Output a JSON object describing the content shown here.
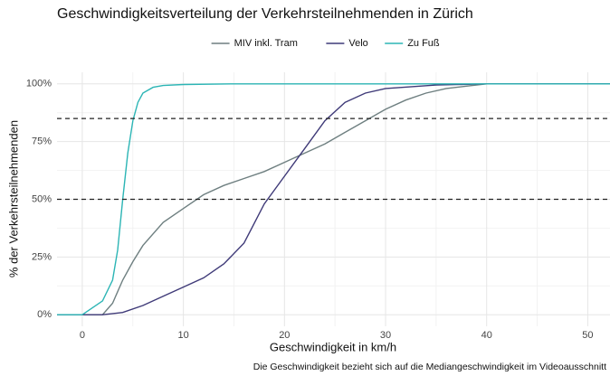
{
  "chart_data": {
    "type": "line",
    "title": "Geschwindigkeitsverteilung der Verkehrsteilnehmenden in Zürich",
    "x_label": "Geschwindigkeit in km/h",
    "y_label": "% der Verkehrsteilnehmenden",
    "caption": "Die Geschwindigkeit bezieht sich auf die Mediangeschwindigkeit im Videoausschnitt",
    "xlim": [
      -2.5,
      52.2
    ],
    "xticks": [
      0,
      10,
      20,
      30,
      40,
      50
    ],
    "xticks_minor": [
      5,
      15,
      25,
      35,
      45
    ],
    "ylim": [
      -5,
      105
    ],
    "yticks": [
      {
        "value": 0,
        "label": "0%"
      },
      {
        "value": 25,
        "label": "25%"
      },
      {
        "value": 50,
        "label": "50%"
      },
      {
        "value": 75,
        "label": "75%"
      },
      {
        "value": 100,
        "label": "100%"
      }
    ],
    "yticks_minor": [
      12.5,
      37.5,
      62.5,
      87.5
    ],
    "grid": true,
    "reference_lines": [
      50,
      85
    ],
    "legend": "top",
    "series": [
      {
        "name": "MIV inkl. Tram",
        "color": "#6e7f80",
        "x": [
          -2.5,
          2,
          3,
          4,
          5,
          6,
          8,
          10,
          12,
          14,
          16,
          18,
          20,
          22,
          24,
          26,
          28,
          30,
          32,
          34,
          36,
          38,
          40,
          52.2
        ],
        "values": [
          0,
          0,
          5,
          15,
          23,
          30,
          40,
          46,
          52,
          56,
          59,
          62,
          66,
          70,
          74,
          79,
          84,
          89,
          93,
          96,
          98,
          99,
          100,
          100
        ]
      },
      {
        "name": "Velo",
        "color": "#3f3a78",
        "x": [
          -2.5,
          2,
          4,
          6,
          8,
          10,
          12,
          14,
          16,
          18,
          20,
          22,
          24,
          26,
          28,
          30,
          35,
          40,
          52.2
        ],
        "values": [
          0,
          0,
          1,
          4,
          8,
          12,
          16,
          22,
          31,
          48,
          60,
          72,
          84,
          92,
          96,
          98,
          99.5,
          100,
          100
        ]
      },
      {
        "name": "Zu Fuß",
        "color": "#2cb5b5",
        "x": [
          -2.5,
          0,
          1,
          2,
          3,
          3.5,
          4,
          4.5,
          5,
          5.5,
          6,
          7,
          8,
          10,
          15,
          52.2
        ],
        "values": [
          0,
          0,
          3,
          6,
          15,
          28,
          50,
          70,
          84,
          92,
          96,
          98.5,
          99.3,
          99.7,
          100,
          100
        ]
      }
    ]
  }
}
